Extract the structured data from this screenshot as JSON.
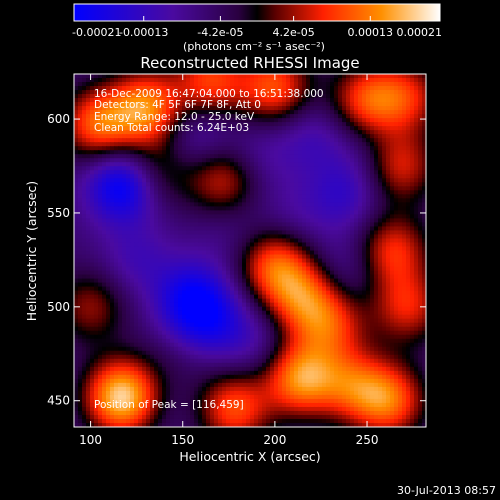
{
  "chart_data": {
    "type": "heatmap",
    "title": "Reconstructed RHESSI Image",
    "xlabel": "Heliocentric X (arcsec)",
    "ylabel": "Heliocentric Y (arcsec)",
    "xlim": [
      91,
      282
    ],
    "ylim": [
      436,
      624
    ],
    "x_ticks": [
      100,
      150,
      200,
      250
    ],
    "y_ticks": [
      450,
      500,
      550,
      600
    ],
    "colorbar": {
      "ticks": [
        {
          "value": -0.00021,
          "label": "-0.00021"
        },
        {
          "value": -0.00013,
          "label": "-0.00013"
        },
        {
          "value": -4.2e-05,
          "label": "-4.2e-05"
        },
        {
          "value": 4.2e-05,
          "label": "4.2e-05"
        },
        {
          "value": 0.00013,
          "label": "0.00013"
        },
        {
          "value": 0.00021,
          "label": "0.00021"
        }
      ],
      "unit_label": "(photons cm⁻² s⁻¹ asec⁻²)",
      "range": [
        -0.00021,
        0.00021
      ]
    },
    "annotations": {
      "time": "16-Dec-2009 16:47:04.000 to 16:51:38.000",
      "detectors": "Detectors: 4F 5F 6F 7F 8F, Att 0",
      "energy": "Energy Range: 12.0 - 25.0 keV",
      "clean": "Clean    Total counts: 6.24E+03",
      "peak": "Position of Peak = [116,459]"
    },
    "features": [
      {
        "x": 117,
        "y": 452,
        "v": 0.00021
      },
      {
        "x": 104,
        "y": 597,
        "v": 0.00013
      },
      {
        "x": 130,
        "y": 606,
        "v": 0.00015
      },
      {
        "x": 165,
        "y": 620,
        "v": 0.00011
      },
      {
        "x": 200,
        "y": 617,
        "v": 0.00012
      },
      {
        "x": 135,
        "y": 572,
        "v": 6e-05
      },
      {
        "x": 172,
        "y": 568,
        "v": 9e-05
      },
      {
        "x": 250,
        "y": 610,
        "v": 0.00011
      },
      {
        "x": 272,
        "y": 612,
        "v": 8e-05
      },
      {
        "x": 268,
        "y": 575,
        "v": 9e-05
      },
      {
        "x": 264,
        "y": 530,
        "v": 0.0001
      },
      {
        "x": 272,
        "y": 500,
        "v": 9e-05
      },
      {
        "x": 200,
        "y": 522,
        "v": 0.00012
      },
      {
        "x": 215,
        "y": 505,
        "v": 0.00011
      },
      {
        "x": 230,
        "y": 490,
        "v": 9e-05
      },
      {
        "x": 214,
        "y": 462,
        "v": 0.00016
      },
      {
        "x": 242,
        "y": 458,
        "v": 9e-05
      },
      {
        "x": 262,
        "y": 450,
        "v": 0.00013
      },
      {
        "x": 178,
        "y": 446,
        "v": 0.00012
      },
      {
        "x": 148,
        "y": 478,
        "v": 7e-05
      },
      {
        "x": 100,
        "y": 500,
        "v": 6e-05
      },
      {
        "x": 118,
        "y": 565,
        "v": -0.00021
      },
      {
        "x": 155,
        "y": 505,
        "v": -0.00016
      },
      {
        "x": 150,
        "y": 482,
        "v": -0.00014
      },
      {
        "x": 168,
        "y": 492,
        "v": -0.00011
      },
      {
        "x": 158,
        "y": 590,
        "v": -0.0001
      },
      {
        "x": 220,
        "y": 590,
        "v": -9e-05
      },
      {
        "x": 238,
        "y": 560,
        "v": -0.00011
      },
      {
        "x": 190,
        "y": 580,
        "v": -8e-05
      },
      {
        "x": 238,
        "y": 520,
        "v": -8e-05
      },
      {
        "x": 125,
        "y": 525,
        "v": -9e-05
      },
      {
        "x": 190,
        "y": 480,
        "v": -8e-05
      },
      {
        "x": 210,
        "y": 548,
        "v": -7e-05
      },
      {
        "x": 175,
        "y": 540,
        "v": -6e-05
      },
      {
        "x": 250,
        "y": 585,
        "v": -6e-05
      },
      {
        "x": 140,
        "y": 455,
        "v": -5e-05
      }
    ]
  },
  "footer": {
    "date": "30-Jul-2013 08:57"
  }
}
